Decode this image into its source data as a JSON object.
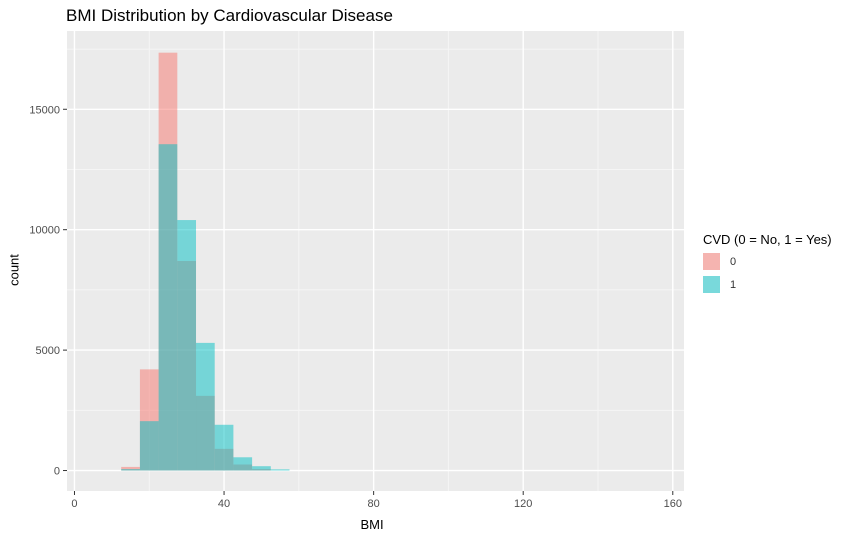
{
  "chart_data": {
    "type": "bar",
    "title": "BMI Distribution by Cardiovascular Disease",
    "xlabel": "BMI",
    "ylabel": "count",
    "xlim": [
      0,
      160
    ],
    "ylim": [
      0,
      18000
    ],
    "x_ticks": [
      0,
      40,
      80,
      120,
      160
    ],
    "y_ticks": [
      0,
      5000,
      10000,
      15000
    ],
    "grid": true,
    "legend_position": "right",
    "legend_title": "CVD (0 = No, 1 = Yes)",
    "bin_width": 5,
    "series": [
      {
        "name": "0",
        "color": "#F8766D",
        "bins": [
          {
            "from": 12.5,
            "to": 17.5,
            "count": 150
          },
          {
            "from": 17.5,
            "to": 22.5,
            "count": 4200
          },
          {
            "from": 22.5,
            "to": 27.5,
            "count": 17350
          },
          {
            "from": 27.5,
            "to": 32.5,
            "count": 8700
          },
          {
            "from": 32.5,
            "to": 37.5,
            "count": 3100
          },
          {
            "from": 37.5,
            "to": 42.5,
            "count": 900
          },
          {
            "from": 42.5,
            "to": 47.5,
            "count": 250
          },
          {
            "from": 47.5,
            "to": 52.5,
            "count": 60
          }
        ]
      },
      {
        "name": "1",
        "color": "#00BFC4",
        "bins": [
          {
            "from": 12.5,
            "to": 17.5,
            "count": 60
          },
          {
            "from": 17.5,
            "to": 22.5,
            "count": 2050
          },
          {
            "from": 22.5,
            "to": 27.5,
            "count": 13550
          },
          {
            "from": 27.5,
            "to": 32.5,
            "count": 10400
          },
          {
            "from": 32.5,
            "to": 37.5,
            "count": 5300
          },
          {
            "from": 37.5,
            "to": 42.5,
            "count": 1900
          },
          {
            "from": 42.5,
            "to": 47.5,
            "count": 550
          },
          {
            "from": 47.5,
            "to": 52.5,
            "count": 180
          },
          {
            "from": 52.5,
            "to": 57.5,
            "count": 50
          }
        ]
      }
    ]
  }
}
